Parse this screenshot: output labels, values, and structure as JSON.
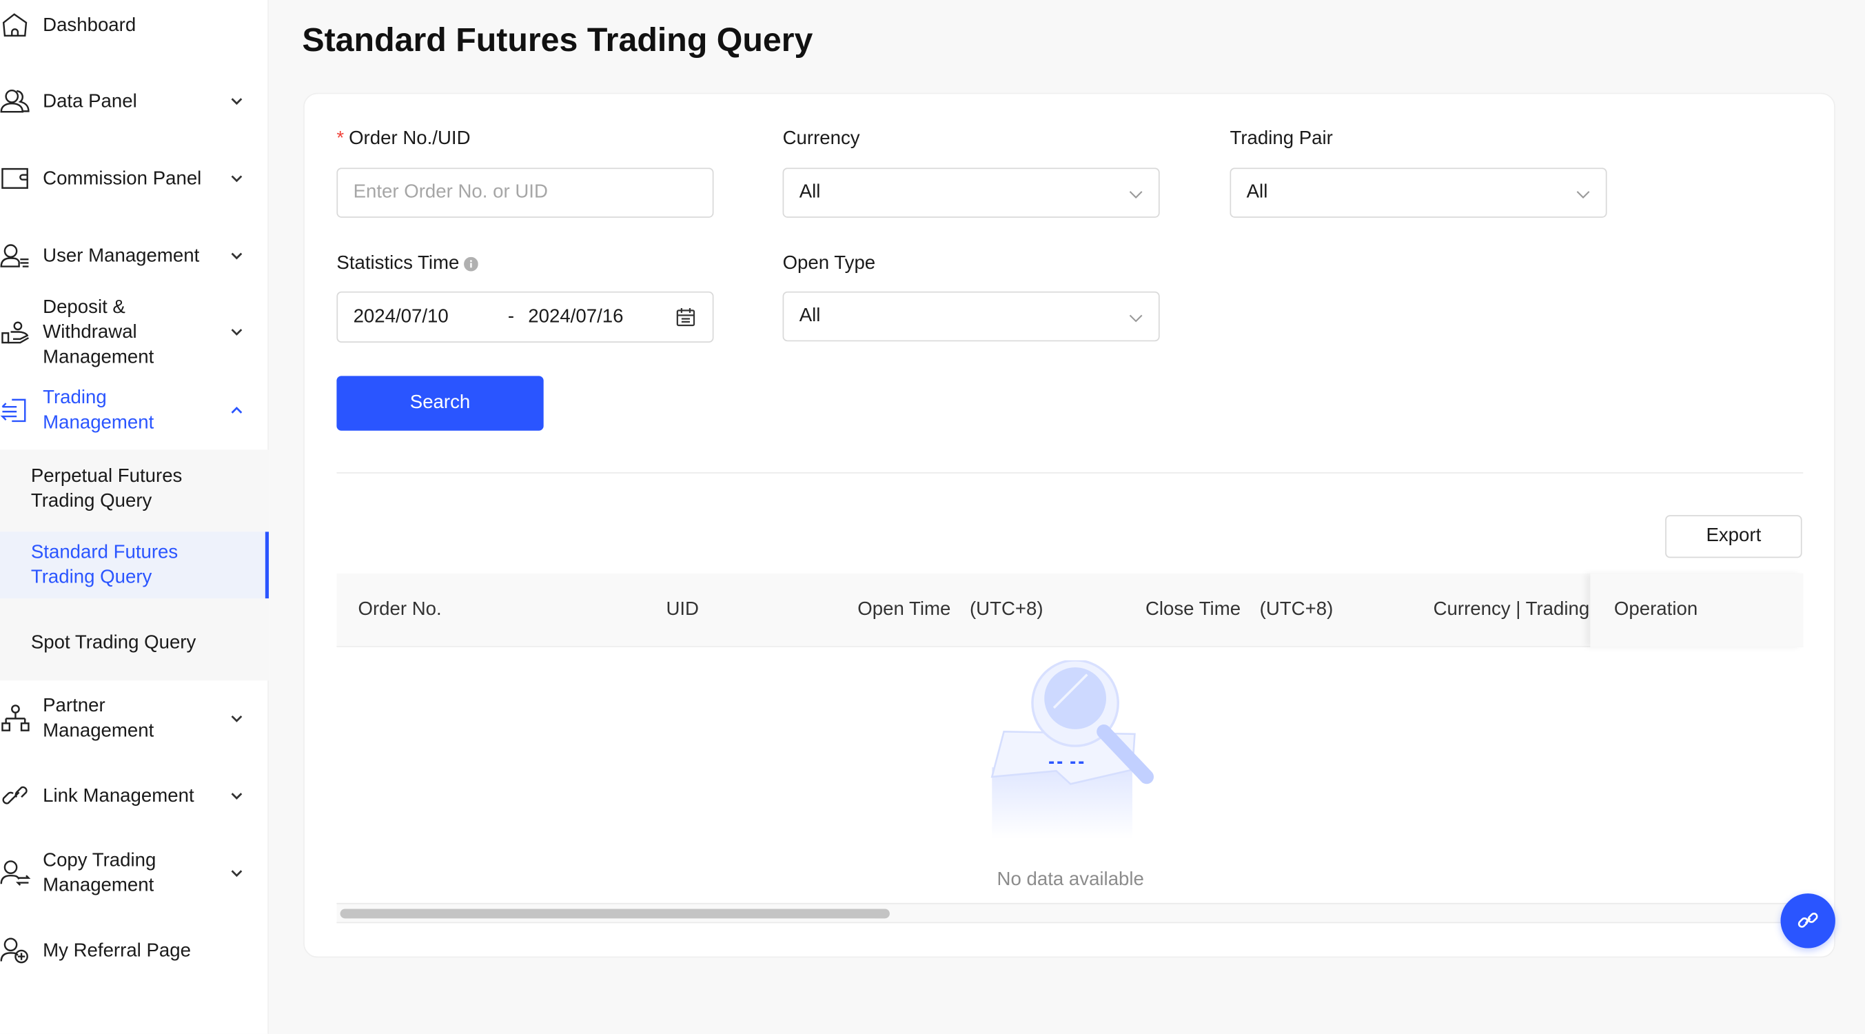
{
  "sidebar": {
    "items": [
      {
        "label": "Dashboard",
        "icon": "home-icon"
      },
      {
        "label": "Data Panel",
        "icon": "users-icon"
      },
      {
        "label": "Commission Panel",
        "icon": "wallet-icon"
      },
      {
        "label": "User Management",
        "icon": "user-list-icon"
      },
      {
        "label": "Deposit & Withdrawal Management",
        "icon": "hand-coin-icon"
      },
      {
        "label": "Trading Management",
        "icon": "trade-icon",
        "expanded": true
      },
      {
        "label": "Partner Management",
        "icon": "org-chart-icon"
      },
      {
        "label": "Link Management",
        "icon": "link-icon"
      },
      {
        "label": "Copy Trading Management",
        "icon": "copy-trade-icon"
      },
      {
        "label": "My Referral Page",
        "icon": "user-plus-icon"
      }
    ],
    "trading_sub": [
      {
        "label": "Perpetual Futures Trading Query"
      },
      {
        "label": "Standard Futures Trading Query",
        "selected": true
      },
      {
        "label": "Spot Trading Query"
      }
    ]
  },
  "page": {
    "title": "Standard Futures Trading Query"
  },
  "form": {
    "order_label": "Order No./UID",
    "order_required": "*",
    "order_placeholder": "Enter Order No. or UID",
    "currency_label": "Currency",
    "currency_value": "All",
    "pair_label": "Trading Pair",
    "pair_value": "All",
    "stat_time_label": "Statistics Time",
    "date_start": "2024/07/10",
    "date_sep": "-",
    "date_end": "2024/07/16",
    "open_type_label": "Open Type",
    "open_type_value": "All",
    "search_label": "Search"
  },
  "table": {
    "export_label": "Export",
    "columns": [
      "Order No.",
      "UID",
      "Open Time　(UTC+8)",
      "Close Time　(UTC+8)",
      "Currency | Trading",
      "Operation"
    ],
    "empty_text": "No data available",
    "scroll_position": 0
  },
  "colors": {
    "accent": "#2a55ff",
    "required": "#f0443b"
  }
}
